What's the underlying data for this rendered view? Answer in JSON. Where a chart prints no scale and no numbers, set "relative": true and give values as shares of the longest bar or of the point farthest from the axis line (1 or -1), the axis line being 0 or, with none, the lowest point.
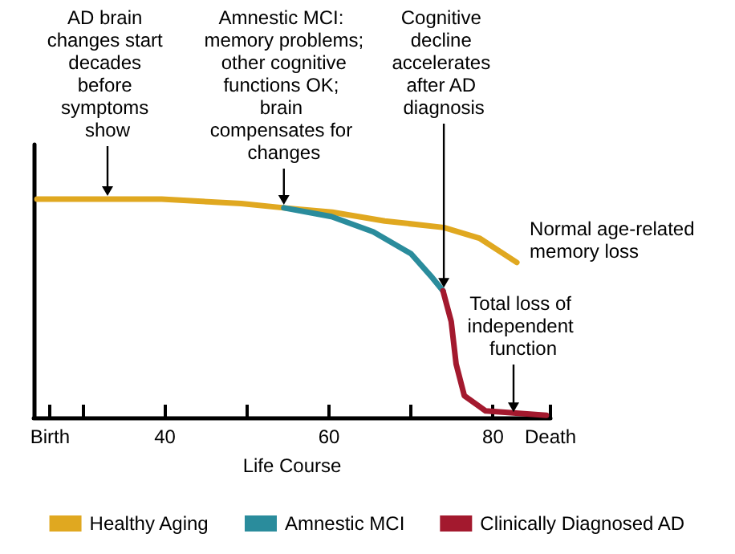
{
  "chart_data": {
    "type": "line",
    "relative": true,
    "xlabel": "Life Course",
    "xlim": [
      24,
      87
    ],
    "xticks": [
      {
        "value": 26,
        "label": "Birth"
      },
      {
        "value": 30,
        "label": null
      },
      40,
      {
        "value": 50,
        "label": null
      },
      60,
      {
        "value": 70,
        "label": null
      },
      80,
      {
        "value": 87,
        "label": "Death"
      }
    ],
    "series": [
      {
        "name": "Healthy Aging",
        "color": "#e0a820",
        "x": [
          24.4,
          39.6,
          49.3,
          54.5,
          60.4,
          66.8,
          74,
          78.4,
          82.9
        ],
        "values": [
          1.0,
          1.0,
          0.98,
          0.96,
          0.94,
          0.9,
          0.87,
          0.82,
          0.71
        ]
      },
      {
        "name": "Amnestic MCI",
        "color": "#2a8c9c",
        "x": [
          54.5,
          60.3,
          65.4,
          70,
          72.6,
          73.9
        ],
        "values": [
          0.96,
          0.92,
          0.85,
          0.75,
          0.64,
          0.58
        ]
      },
      {
        "name": "Clinically Diagnosed AD",
        "color": "#a3192e",
        "x": [
          73.9,
          74.9,
          75.5,
          76.5,
          79.1,
          86.5
        ],
        "values": [
          0.58,
          0.44,
          0.245,
          0.1,
          0.03,
          0.01
        ]
      }
    ],
    "annotations": [
      {
        "text": "AD brain changes start decades before symptoms show",
        "x": 33,
        "y": 1.0
      },
      {
        "text": "Amnestic MCI: memory problems; other cognitive functions OK; brain compensates for changes",
        "x": 54.5,
        "y": 0.96
      },
      {
        "text": "Cognitive decline accelerates after AD diagnosis",
        "x": 74,
        "y": 0.58
      },
      {
        "text": "Normal age-related memory loss",
        "x": 82.9,
        "y": 0.71
      },
      {
        "text": "Total loss of independent function",
        "x": 82.5,
        "y": 0.01
      }
    ],
    "grid": false,
    "legend": "bottom",
    "marker": "none",
    "line_style": "solid"
  }
}
